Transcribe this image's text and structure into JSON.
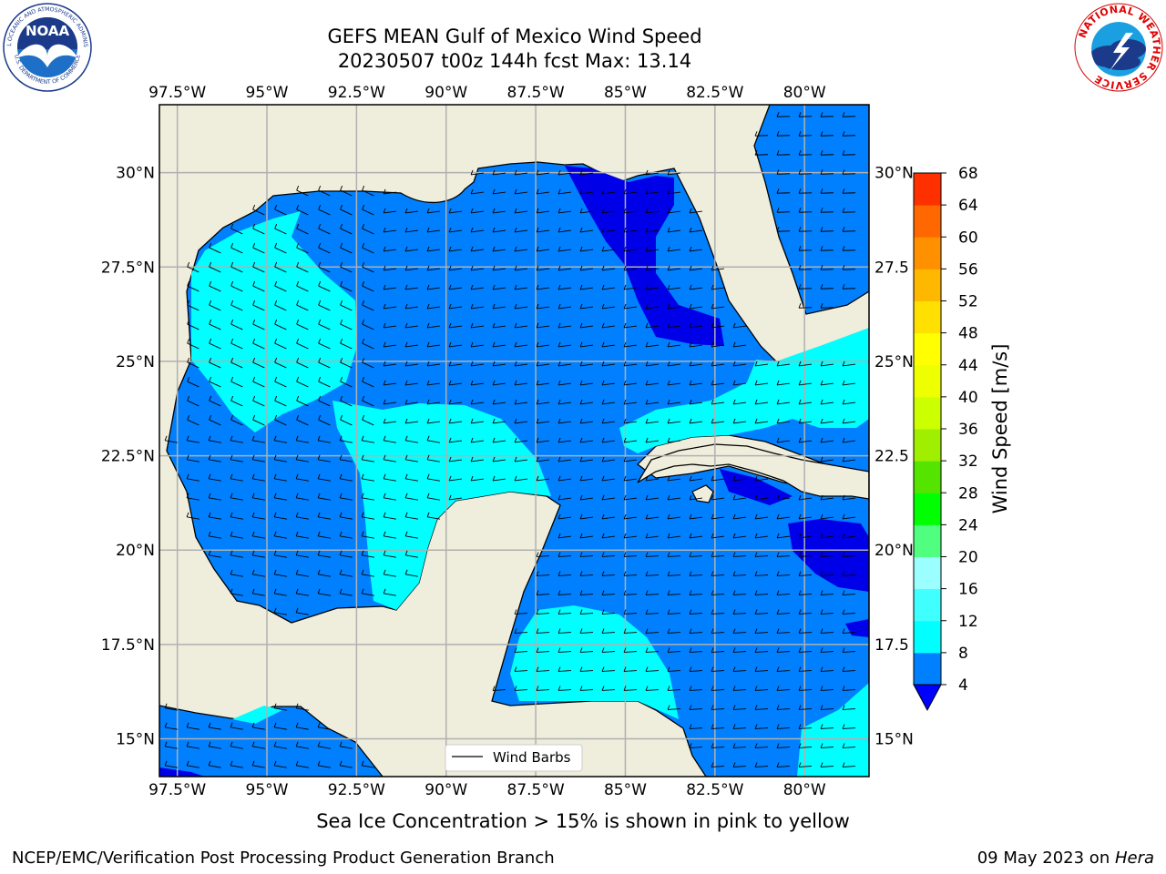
{
  "title": {
    "line1": "GEFS MEAN Gulf of Mexico Wind Speed",
    "line2": "20230507 t00z 144h fcst   Max: 13.14"
  },
  "logos": {
    "noaa": {
      "text": "NOAA",
      "ring_top": "NATIONAL OCEANIC AND ATMOSPHERIC ADMINISTRATION",
      "ring_bottom": "U.S. DEPARTMENT OF COMMERCE",
      "icon": "noaa-seal-icon"
    },
    "nws": {
      "ring_text": "NATIONAL WEATHER SERVICE",
      "icon": "nws-seal-icon"
    }
  },
  "map": {
    "lon_labels": [
      "97.5°W",
      "95°W",
      "92.5°W",
      "90°W",
      "87.5°W",
      "85°W",
      "82.5°W",
      "80°W"
    ],
    "lat_labels_left": [
      "30°N",
      "27.5°N",
      "25°N",
      "22.5°N",
      "20°N",
      "17.5°N",
      "15°N"
    ],
    "lat_labels_right": [
      "30°N",
      "27.5",
      "25°N",
      "22.5",
      "20°N",
      "17.5",
      "15°N"
    ],
    "lon_values": [
      -97.5,
      -95,
      -92.5,
      -90,
      -87.5,
      -85,
      -82.5,
      -80
    ],
    "lat_values": [
      30,
      27.5,
      25,
      22.5,
      20,
      17.5,
      15
    ],
    "extent": {
      "lon_min": -98,
      "lon_max": -78.2,
      "lat_min": 14,
      "lat_max": 31.8
    },
    "legend_label": "Wind Barbs",
    "colors": {
      "land": "#efeddc",
      "coast": "#000000",
      "grid": "#b0b0b0",
      "wind_4_8": "#0080ff",
      "wind_8_12": "#00ffff",
      "wind_lt_4": "#0000e8"
    }
  },
  "colorbar": {
    "label": "Wind Speed [m/s]",
    "ticks": [
      "68",
      "64",
      "60",
      "56",
      "52",
      "48",
      "44",
      "40",
      "36",
      "32",
      "28",
      "24",
      "20",
      "16",
      "12",
      "8",
      "4"
    ],
    "levels": [
      4,
      8,
      12,
      16,
      20,
      24,
      28,
      32,
      36,
      40,
      44,
      48,
      52,
      56,
      60,
      64,
      68
    ],
    "colors": [
      "#0080ff",
      "#00ffff",
      "#40ffff",
      "#9bffff",
      "#50ff80",
      "#00ff00",
      "#55e400",
      "#a0ee00",
      "#ccff00",
      "#eeff00",
      "#ffff00",
      "#ffe000",
      "#ffb800",
      "#ff9000",
      "#ff6800",
      "#ff3000",
      "#ff0000"
    ],
    "under_color": "#0000ff"
  },
  "captions": {
    "ice_note": "Sea Ice Concentration > 15% is shown in pink to yellow",
    "footer_left": "NCEP/EMC/Verification Post Processing Product Generation Branch",
    "footer_date": "09 May 2023 on ",
    "footer_machine": "Hera"
  }
}
